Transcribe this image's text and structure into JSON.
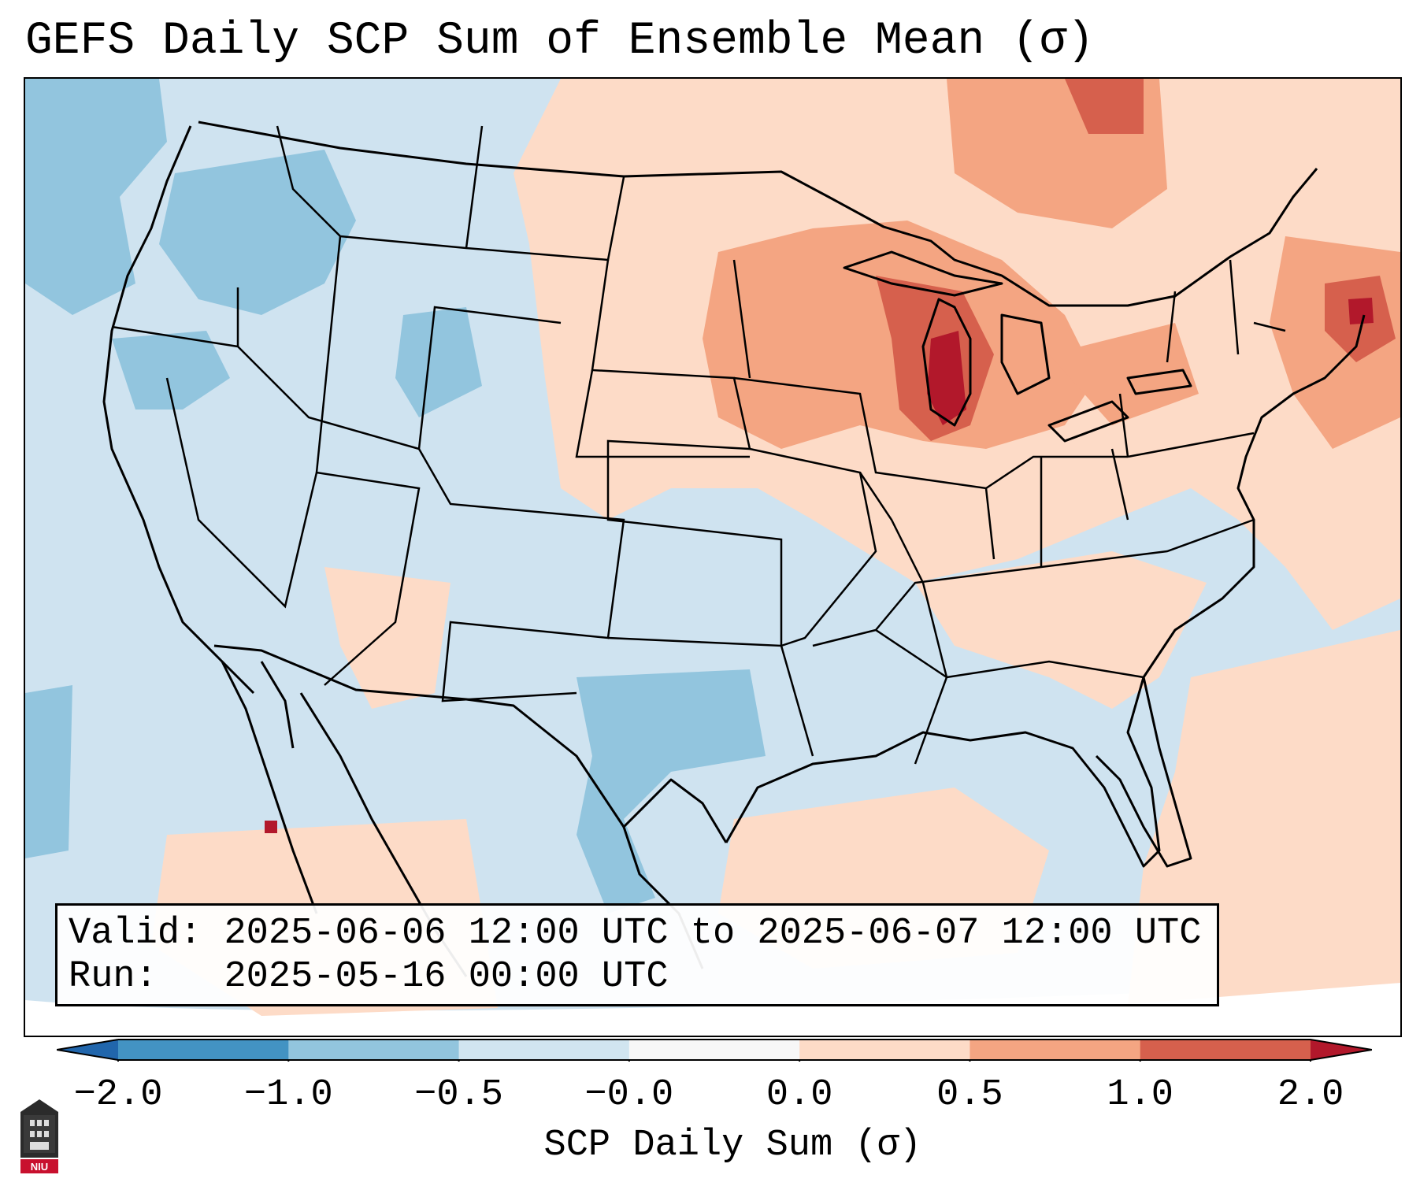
{
  "title": "GEFS Daily SCP Sum of Ensemble Mean (σ)",
  "info": {
    "valid_label": "Valid:",
    "valid_value": "2025-06-06 12:00 UTC to 2025-06-07 12:00 UTC",
    "run_label": "Run:",
    "run_value": "2025-05-16 00:00 UTC"
  },
  "colorbar": {
    "label": "SCP Daily Sum (σ)",
    "ticks": [
      "−2.0",
      "−1.0",
      "−0.5",
      "−0.0",
      "0.0",
      "0.5",
      "1.0",
      "2.0"
    ],
    "colors": [
      "#4393c3",
      "#92c5de",
      "#d1e5f0",
      "#f7f7f7",
      "#fddbc7",
      "#f4a582",
      "#d6604d"
    ],
    "under_color": "#2166ac",
    "over_color": "#b2182b"
  },
  "map": {
    "variable": "SCP daily sum anomaly",
    "units": "σ",
    "region": "Contiguous United States",
    "ocean_color": "#cfe3f0",
    "palette": {
      "neg_strong": "#4393c3",
      "neg_moderate": "#92c5de",
      "neg_weak": "#d1e5f0",
      "pos_weak": "#fddbc7",
      "pos_moderate": "#f4a582",
      "pos_strong": "#d6604d",
      "pos_extreme": "#b2182b"
    }
  },
  "logo": {
    "text": "NIU"
  }
}
